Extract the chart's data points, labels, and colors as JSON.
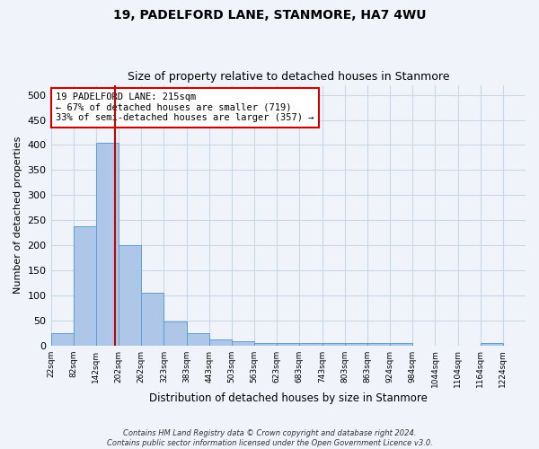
{
  "title": "19, PADELFORD LANE, STANMORE, HA7 4WU",
  "subtitle": "Size of property relative to detached houses in Stanmore",
  "xlabel": "Distribution of detached houses by size in Stanmore",
  "ylabel": "Number of detached properties",
  "bar_color": "#aec6e8",
  "bar_edge_color": "#5a9fd4",
  "grid_color": "#c8d8e8",
  "bin_labels": [
    "22sqm",
    "82sqm",
    "142sqm",
    "202sqm",
    "262sqm",
    "323sqm",
    "383sqm",
    "443sqm",
    "503sqm",
    "563sqm",
    "623sqm",
    "683sqm",
    "743sqm",
    "803sqm",
    "863sqm",
    "924sqm",
    "984sqm",
    "1044sqm",
    "1104sqm",
    "1164sqm",
    "1224sqm"
  ],
  "bar_heights": [
    25,
    237,
    405,
    200,
    105,
    48,
    24,
    12,
    8,
    5,
    5,
    5,
    5,
    5,
    5,
    5,
    0,
    0,
    0,
    5,
    0
  ],
  "ylim": [
    0,
    520
  ],
  "yticks": [
    0,
    50,
    100,
    150,
    200,
    250,
    300,
    350,
    400,
    450,
    500
  ],
  "property_line_x": 2.85,
  "annotation_text": "19 PADELFORD LANE: 215sqm\n← 67% of detached houses are smaller (719)\n33% of semi-detached houses are larger (357) →",
  "annotation_box_color": "#ffffff",
  "annotation_border_color": "#cc0000",
  "footer_line1": "Contains HM Land Registry data © Crown copyright and database right 2024.",
  "footer_line2": "Contains public sector information licensed under the Open Government Licence v3.0.",
  "background_color": "#f0f4fa"
}
